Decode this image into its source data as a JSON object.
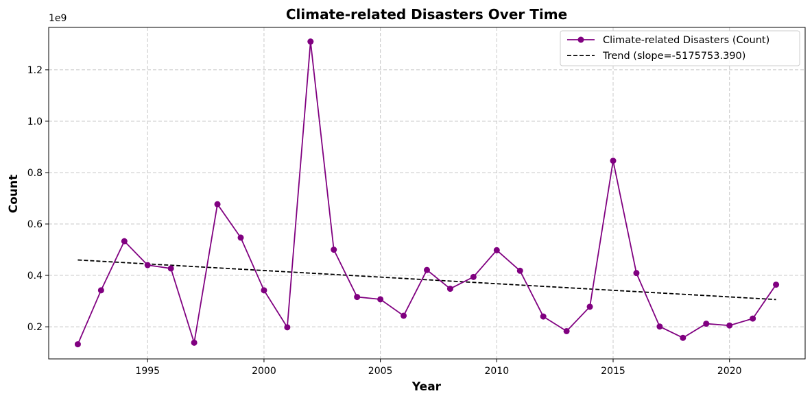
{
  "chart_data": {
    "type": "line",
    "title": "Climate-related Disasters Over Time",
    "xlabel": "Year",
    "ylabel": "Count",
    "y_offset_label": "1e9",
    "y_scale_factor": 1000000000,
    "xlim": [
      1990.75,
      2023.25
    ],
    "ylim": [
      75000000,
      1365000000
    ],
    "x_ticks": [
      1995,
      2000,
      2005,
      2010,
      2015,
      2020
    ],
    "x_tick_labels": [
      "1995",
      "2000",
      "2005",
      "2010",
      "2015",
      "2020"
    ],
    "y_ticks": [
      200000000,
      400000000,
      600000000,
      800000000,
      1000000000,
      1200000000
    ],
    "y_tick_labels": [
      "0.2",
      "0.4",
      "0.6",
      "0.8",
      "1.0",
      "1.2"
    ],
    "grid": true,
    "legend_position": "top-right",
    "series": [
      {
        "name": "Climate-related Disasters (Count)",
        "color": "#800080",
        "style": "line-marker",
        "x": [
          1992,
          1993,
          1994,
          1995,
          1996,
          1997,
          1998,
          1999,
          2000,
          2001,
          2002,
          2003,
          2004,
          2005,
          2006,
          2007,
          2008,
          2009,
          2010,
          2011,
          2012,
          2013,
          2014,
          2015,
          2016,
          2017,
          2018,
          2019,
          2020,
          2021,
          2022
        ],
        "values": [
          132000000,
          342000000,
          533000000,
          440000000,
          427000000,
          138000000,
          677000000,
          547000000,
          342000000,
          198000000,
          1310000000,
          500000000,
          316000000,
          307000000,
          243000000,
          421000000,
          348000000,
          394000000,
          498000000,
          418000000,
          240000000,
          183000000,
          278000000,
          846000000,
          409000000,
          201000000,
          157000000,
          212000000,
          205000000,
          232000000,
          364000000
        ]
      },
      {
        "name": "Trend (slope=-5175753.390)",
        "color": "#000000",
        "style": "dashed",
        "x": [
          1992,
          2022
        ],
        "values": [
          460000000,
          306000000
        ]
      }
    ]
  }
}
